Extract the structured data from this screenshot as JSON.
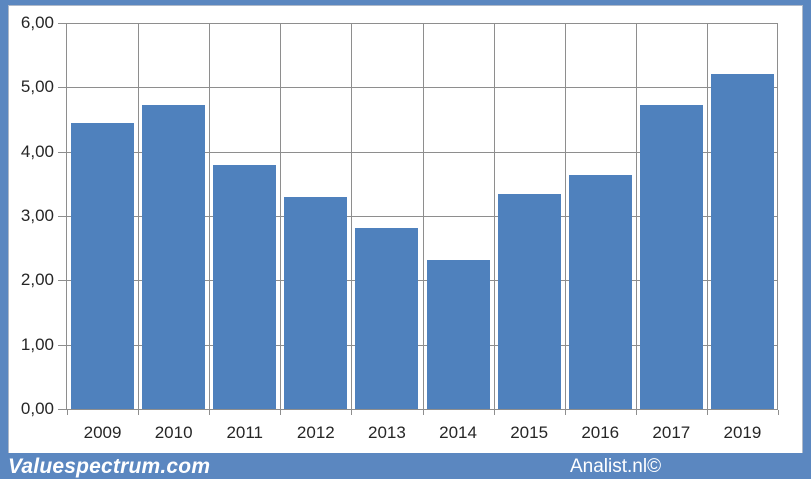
{
  "branding": {
    "left": "Valuespectrum.com",
    "right": "Analist.nl©"
  },
  "colors": {
    "frame": "#5b87c0",
    "footer": "#5b87c0",
    "bar": "#4f81bd",
    "gridline": "#8e8e8e",
    "label_text": "#262626",
    "footer_text": "#ffffff"
  },
  "chart_data": {
    "type": "bar",
    "title": "",
    "categories": [
      "2009",
      "2010",
      "2011",
      "2012",
      "2013",
      "2014",
      "2015",
      "2016",
      "2017",
      "2019"
    ],
    "values": [
      4.44,
      4.73,
      3.79,
      3.3,
      2.81,
      2.32,
      3.34,
      3.63,
      4.72,
      5.2
    ],
    "xlabel": "",
    "ylabel": "",
    "ylim": [
      0,
      6
    ],
    "ytick_step": 1,
    "ytick_labels": [
      "0,00",
      "1,00",
      "2,00",
      "3,00",
      "4,00",
      "5,00",
      "6,00"
    ],
    "grid": true,
    "legend": "none",
    "bar_color": "#4f81bd",
    "gridline_color": "#8e8e8e",
    "decimal_separator": ","
  }
}
